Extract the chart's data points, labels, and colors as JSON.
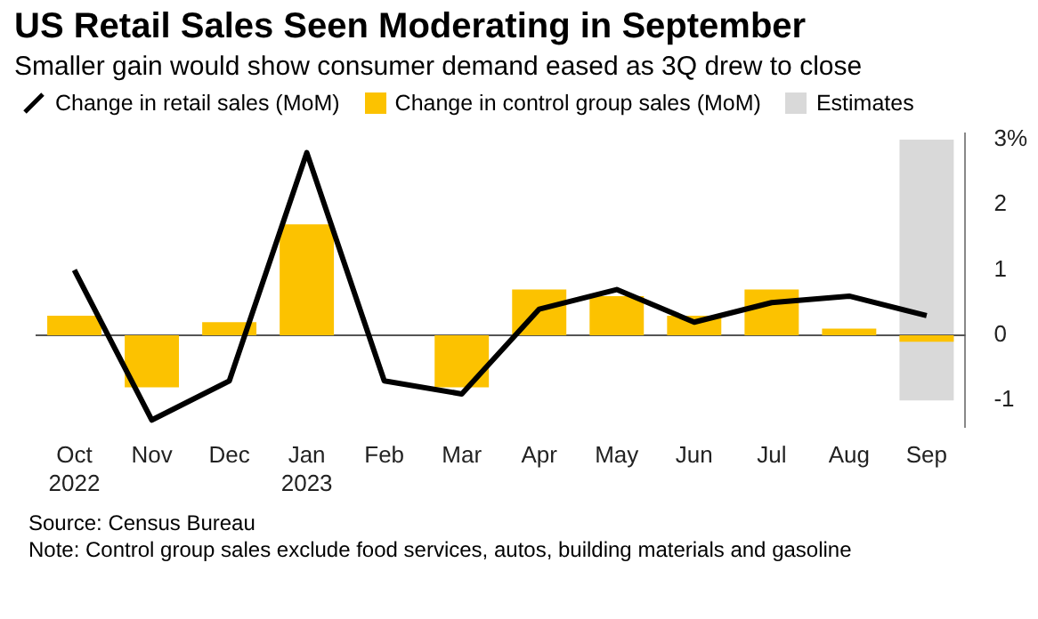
{
  "chart_data": {
    "type": "bar",
    "title": "US Retail Sales Seen Moderating in September",
    "subtitle": "Smaller gain would show consumer demand eased as 3Q drew to close",
    "categories": [
      "Oct 2022",
      "Nov",
      "Dec",
      "Jan 2023",
      "Feb",
      "Mar",
      "Apr",
      "May",
      "Jun",
      "Jul",
      "Aug",
      "Sep"
    ],
    "series": [
      {
        "name": "Change in retail sales (MoM)",
        "type": "line",
        "color": "#000000",
        "values": [
          1.0,
          -1.3,
          -0.7,
          2.8,
          -0.7,
          -0.9,
          0.4,
          0.7,
          0.2,
          0.5,
          0.6,
          0.3
        ]
      },
      {
        "name": "Change in control group sales (MoM)",
        "color": "#fcc200",
        "values": [
          0.3,
          -0.8,
          0.2,
          1.7,
          0.0,
          -0.8,
          0.7,
          0.6,
          0.3,
          0.7,
          0.1,
          -0.1
        ]
      }
    ],
    "ylim": [
      -1.4,
      3.1
    ],
    "yticks": [
      -1,
      0,
      1,
      2,
      {
        "value": 3,
        "label": "3%"
      }
    ],
    "ref_lines": [
      {
        "axis": "y",
        "value": 0,
        "color": "#555555"
      }
    ],
    "bands": [
      {
        "axis": "x",
        "from": "Sep",
        "to": "Sep",
        "label": "Estimates",
        "color": "#d9d9d9"
      }
    ],
    "legend": "top left",
    "grid": false,
    "annotations": [
      "Source: Census Bureau",
      "Note: Control group sales exclude food services, autos, building materials and gasoline"
    ]
  }
}
